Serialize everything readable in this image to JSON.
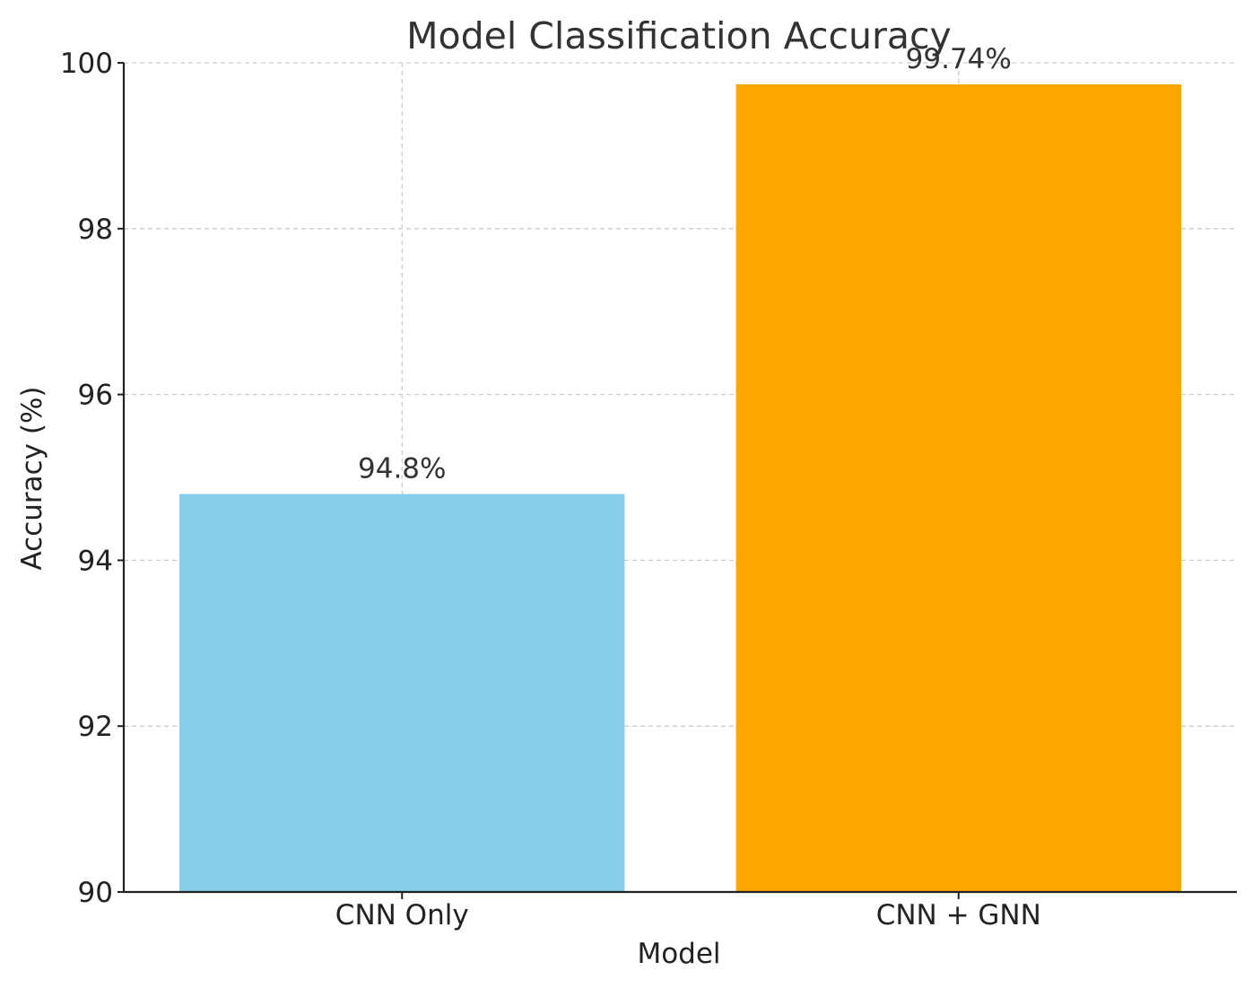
{
  "chart_data": {
    "type": "bar",
    "title": "Model Classification Accuracy",
    "xlabel": "Model",
    "ylabel": "Accuracy (%)",
    "categories": [
      "CNN Only",
      "CNN + GNN"
    ],
    "values": [
      94.8,
      99.74
    ],
    "value_labels": [
      "94.8%",
      "99.74%"
    ],
    "colors": [
      "#87CEEB",
      "#FFA500"
    ],
    "ylim": [
      90,
      100
    ],
    "yticks": [
      90,
      92,
      94,
      96,
      98,
      100
    ],
    "grid": true
  }
}
